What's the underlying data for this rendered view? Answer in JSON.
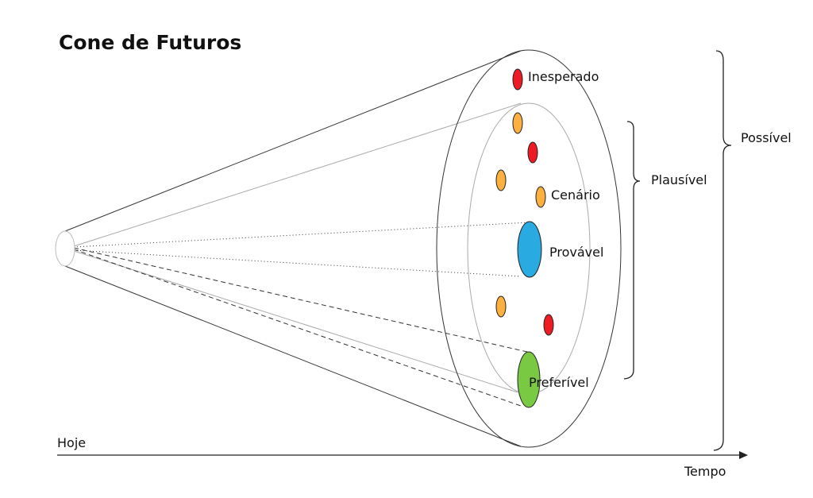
{
  "title": "Cone de Futuros",
  "labels": {
    "inesperado": "Inesperado",
    "cenario": "Cenário",
    "provavel": "Provável",
    "preferivel": "Preferível",
    "plausivel": "Plausível",
    "possivel": "Possível",
    "hoje": "Hoje",
    "tempo": "Tempo"
  },
  "colors": {
    "inesperado": "#ed1c24",
    "cenario": "#fbb040",
    "provavel": "#29abe2",
    "preferivel": "#7ac943"
  }
}
